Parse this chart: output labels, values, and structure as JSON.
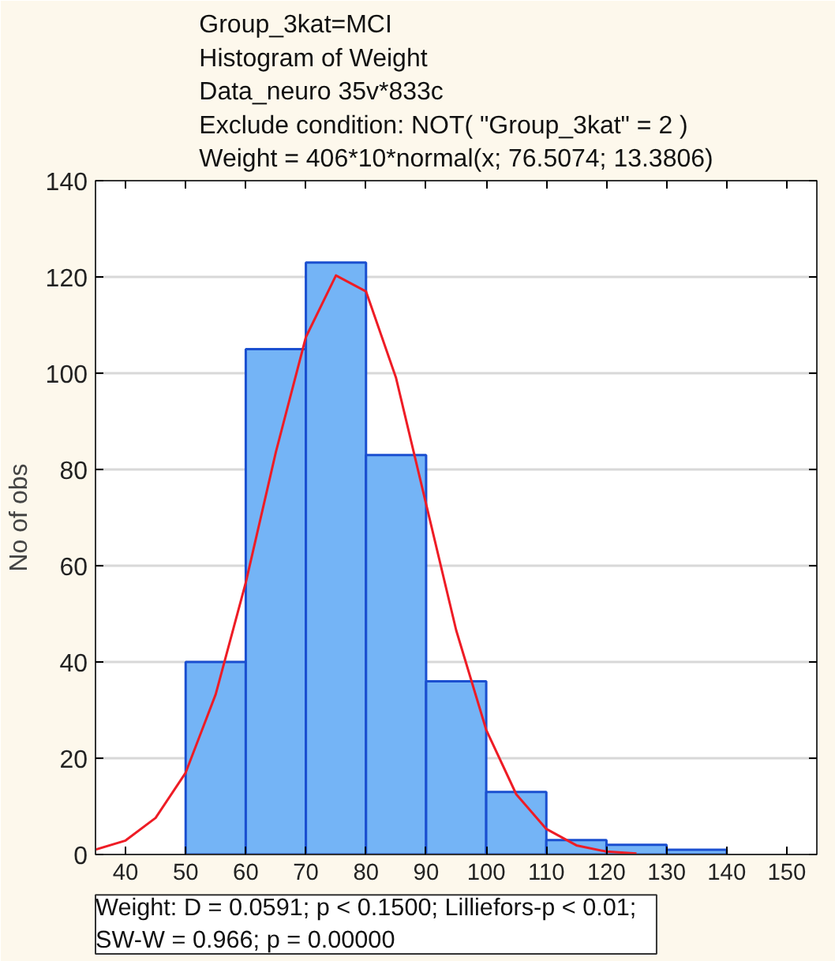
{
  "chart_data": {
    "type": "histogram",
    "title": "Group_3kat=MCI\nHistogram of Weight\nData_neuro 35v*833c\nExclude condition: NOT( \"Group_3kat\" = 2 )\nWeight = 406*10*normal(x; 76.5074; 13.3806)",
    "ylabel": "No of obs",
    "annotations": [
      "Weight:    D = 0.0591; p < 0.1500; Lilliefors-p < 0.01;\nSW-W = 0.966; p = 0.00000"
    ],
    "series": [
      {
        "color": "#74b4f6",
        "bins": [
          50,
          60,
          70,
          80,
          90,
          100,
          110,
          120,
          130,
          140
        ],
        "values": [
          40,
          105,
          123,
          83,
          36,
          13,
          3,
          2,
          1
        ]
      },
      {
        "type": "line",
        "color": "#ee1c25",
        "x": [
          35,
          40,
          45,
          50,
          55,
          60,
          65,
          70,
          75,
          80,
          85,
          90,
          95,
          100,
          105,
          110,
          115,
          120,
          125
        ],
        "values": [
          1.0,
          2.9,
          7.6,
          17.0,
          33.3,
          56.5,
          83.6,
          107.5,
          120.3,
          117.0,
          99.0,
          72.8,
          46.6,
          25.9,
          12.5,
          5.3,
          1.9,
          0.6,
          0.2
        ]
      }
    ],
    "xlim": [
      35,
      155
    ],
    "xticks": [
      40,
      50,
      60,
      70,
      80,
      90,
      100,
      110,
      120,
      130,
      140,
      150
    ],
    "ylim": [
      0,
      140
    ],
    "yticks": [
      0,
      20,
      40,
      60,
      80,
      100,
      120,
      140
    ],
    "grid": "y",
    "line_style": "solid",
    "marker": "none"
  }
}
